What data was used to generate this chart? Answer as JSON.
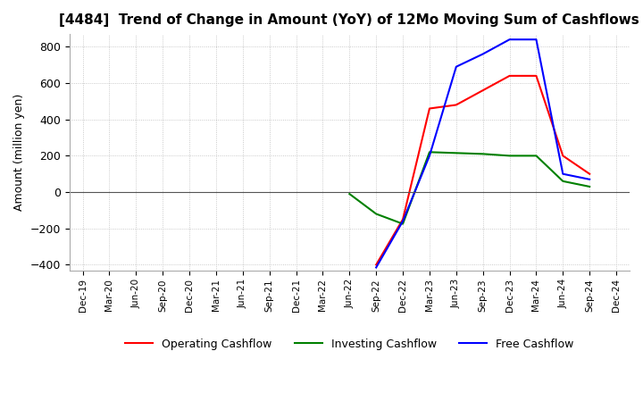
{
  "title": "[4484]  Trend of Change in Amount (YoY) of 12Mo Moving Sum of Cashflows",
  "ylabel": "Amount (million yen)",
  "ylim": [
    -430,
    870
  ],
  "yticks": [
    -400,
    -200,
    0,
    200,
    400,
    600,
    800
  ],
  "background_color": "#ffffff",
  "grid_color": "#bbbbbb",
  "dates": [
    "Dec-19",
    "Mar-20",
    "Jun-20",
    "Sep-20",
    "Dec-20",
    "Mar-21",
    "Jun-21",
    "Sep-21",
    "Dec-21",
    "Mar-22",
    "Jun-22",
    "Sep-22",
    "Dec-22",
    "Mar-23",
    "Jun-23",
    "Sep-23",
    "Dec-23",
    "Mar-24",
    "Jun-24",
    "Sep-24",
    "Dec-24"
  ],
  "operating": [
    null,
    null,
    null,
    null,
    null,
    null,
    null,
    null,
    null,
    null,
    null,
    -400,
    -150,
    460,
    480,
    560,
    640,
    640,
    200,
    100,
    null
  ],
  "investing": [
    null,
    null,
    null,
    null,
    null,
    null,
    null,
    null,
    null,
    null,
    -10,
    -120,
    -175,
    220,
    215,
    210,
    200,
    200,
    60,
    30,
    null
  ],
  "free": [
    null,
    null,
    null,
    null,
    null,
    null,
    null,
    null,
    null,
    null,
    null,
    -415,
    -160,
    200,
    690,
    760,
    840,
    840,
    100,
    70,
    null
  ],
  "operating_color": "#ff0000",
  "investing_color": "#008000",
  "free_color": "#0000ff",
  "legend_labels": [
    "Operating Cashflow",
    "Investing Cashflow",
    "Free Cashflow"
  ]
}
